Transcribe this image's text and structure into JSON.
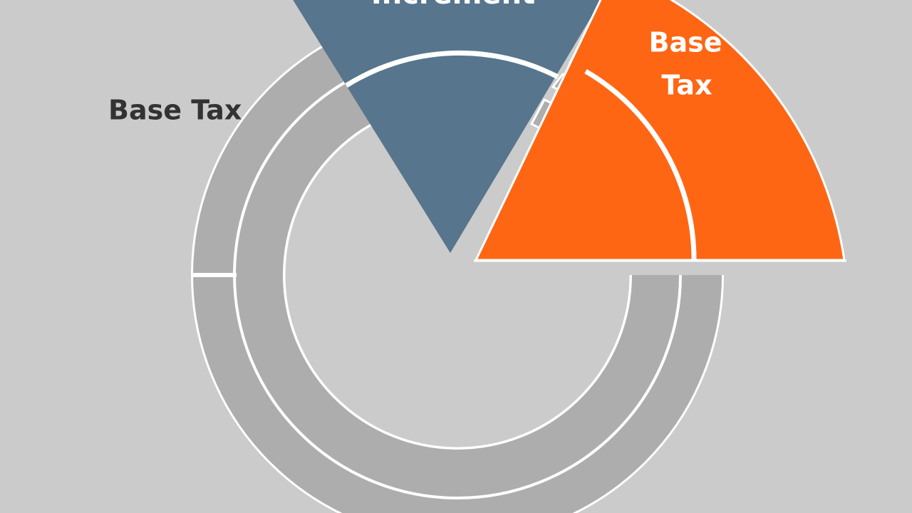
{
  "labels": {
    "increment": "Increment",
    "base_tax_left": "Base Tax",
    "base_tax_orange": [
      "Base",
      "Tax"
    ]
  }
}
